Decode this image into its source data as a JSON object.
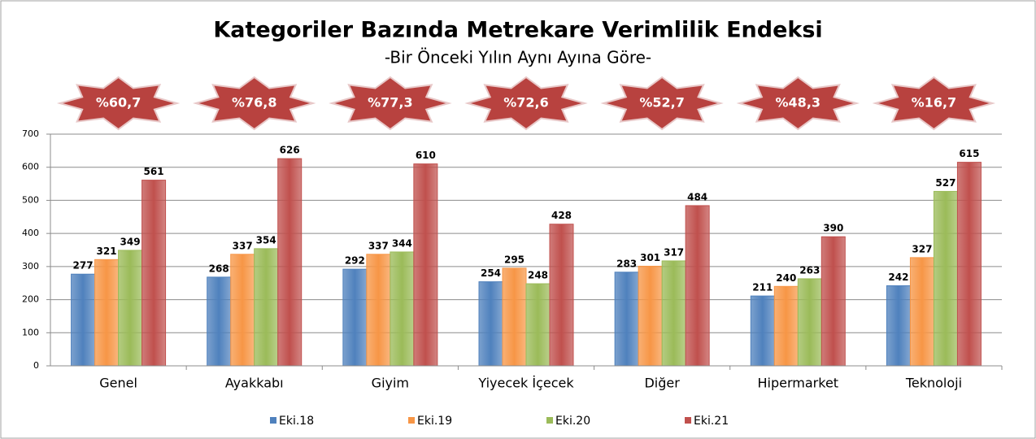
{
  "chart_data": {
    "type": "bar",
    "title": "Kategoriler Bazında Metrekare Verimlilik Endeksi",
    "subtitle": "-Bir Önceki Yılın Aynı Ayına Göre-",
    "categories": [
      "Genel",
      "Ayakkabı",
      "Giyim",
      "Yiyecek İçecek",
      "Diğer",
      "Hipermarket",
      "Teknoloji"
    ],
    "annotations": [
      "%60,7",
      "%76,8",
      "%77,3",
      "%72,6",
      "%52,7",
      "%48,3",
      "%16,7"
    ],
    "series": [
      {
        "name": "Eki.18",
        "color": "#4f81bd",
        "values": [
          277,
          268,
          292,
          254,
          283,
          211,
          242
        ]
      },
      {
        "name": "Eki.19",
        "color": "#f79646",
        "values": [
          321,
          337,
          337,
          295,
          301,
          240,
          327
        ]
      },
      {
        "name": "Eki.20",
        "color": "#9bbb59",
        "values": [
          349,
          354,
          344,
          248,
          317,
          263,
          527
        ]
      },
      {
        "name": "Eki.21",
        "color": "#c0504d",
        "values": [
          561,
          626,
          610,
          428,
          484,
          390,
          615
        ]
      }
    ],
    "ylim": [
      0,
      700
    ],
    "yticks": [
      0,
      100,
      200,
      300,
      400,
      500,
      600,
      700
    ],
    "grid": true,
    "legend": "bottom",
    "annotation_color": "#b8423f"
  }
}
